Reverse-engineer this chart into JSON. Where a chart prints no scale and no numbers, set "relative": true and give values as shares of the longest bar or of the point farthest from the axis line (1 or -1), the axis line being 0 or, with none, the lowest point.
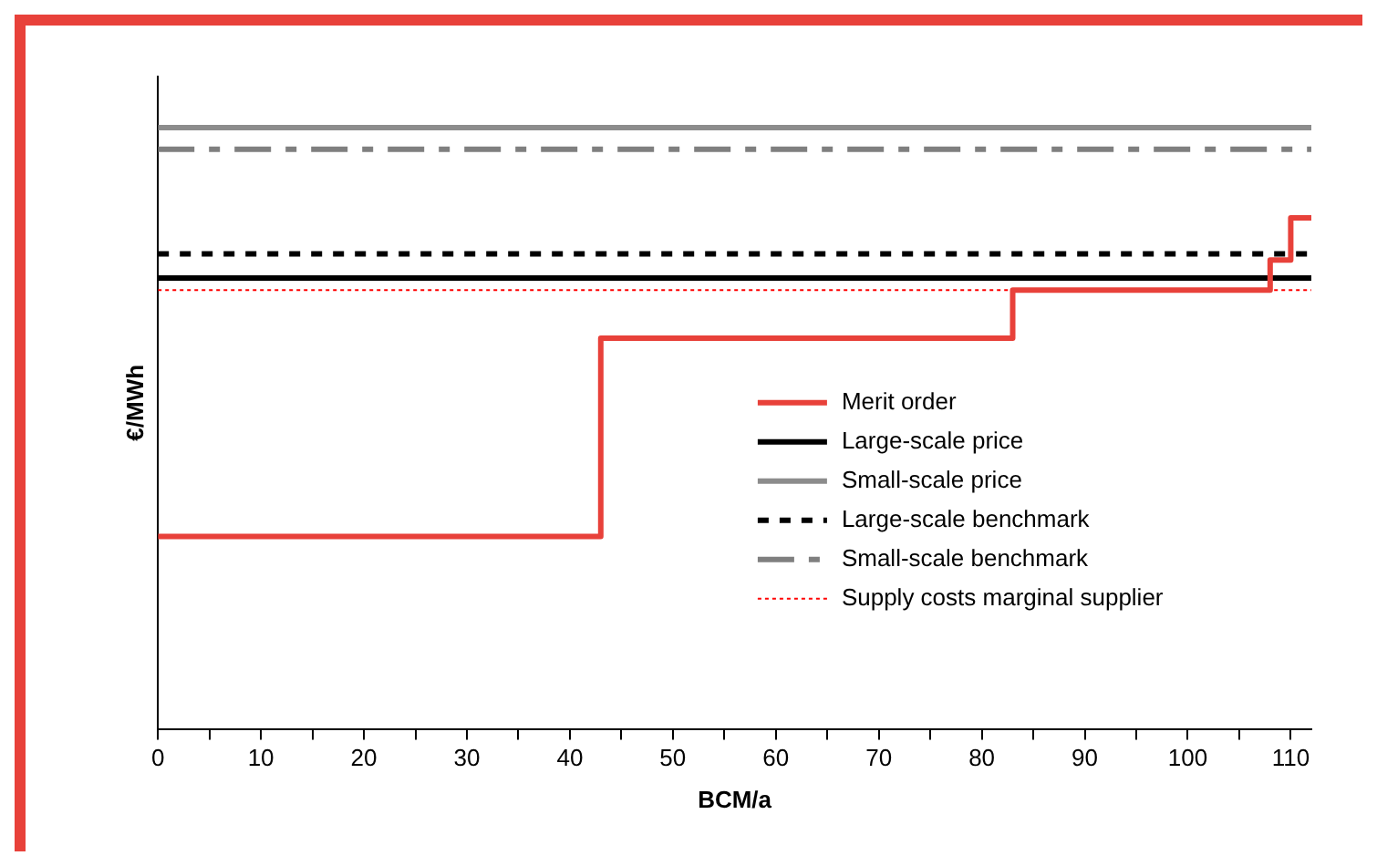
{
  "chart_data": {
    "type": "line",
    "relative": true,
    "xlabel": "BCM/a",
    "ylabel": "€/MWh",
    "xlim": [
      0,
      112
    ],
    "xticks": [
      0,
      {
        "value": 5,
        "label": null
      },
      10,
      {
        "value": 15,
        "label": null
      },
      20,
      {
        "value": 25,
        "label": null
      },
      30,
      {
        "value": 35,
        "label": null
      },
      40,
      {
        "value": 45,
        "label": null
      },
      50,
      {
        "value": 55,
        "label": null
      },
      60,
      {
        "value": 65,
        "label": null
      },
      70,
      {
        "value": 75,
        "label": null
      },
      80,
      {
        "value": 85,
        "label": null
      },
      90,
      {
        "value": 95,
        "label": null
      },
      100,
      {
        "value": 105,
        "label": null
      },
      110
    ],
    "grid": false,
    "legend": "right",
    "marker": "none",
    "series": [
      {
        "name": "Merit order",
        "type": "step",
        "color": "#e8413a",
        "line_style": "solid",
        "x": [
          0,
          43,
          83,
          108,
          110,
          112
        ],
        "values": [
          0.32,
          0.65,
          0.73,
          0.78,
          0.85,
          0.85
        ]
      },
      {
        "name": "Large-scale price",
        "color": "#000000",
        "line_style": "solid",
        "x": [
          0,
          112
        ],
        "values": [
          0.75,
          0.75
        ]
      },
      {
        "name": "Small-scale price",
        "color": "#8c8c8c",
        "line_style": "solid",
        "x": [
          0,
          112
        ],
        "values": [
          1,
          1
        ]
      },
      {
        "name": "Large-scale benchmark",
        "color": "#000000",
        "line_style": "dashed",
        "x": [
          0,
          112
        ],
        "values": [
          0.79,
          0.79
        ]
      },
      {
        "name": "Small-scale benchmark",
        "color": "#7f7f7f",
        "line_style": "dashdot",
        "x": [
          0,
          112
        ],
        "values": [
          0.964,
          0.964
        ]
      },
      {
        "name": "Supply costs marginal supplier",
        "color": "#ff0000",
        "line_style": "dotted",
        "x": [
          0,
          112
        ],
        "values": [
          0.73,
          0.73
        ]
      }
    ]
  }
}
